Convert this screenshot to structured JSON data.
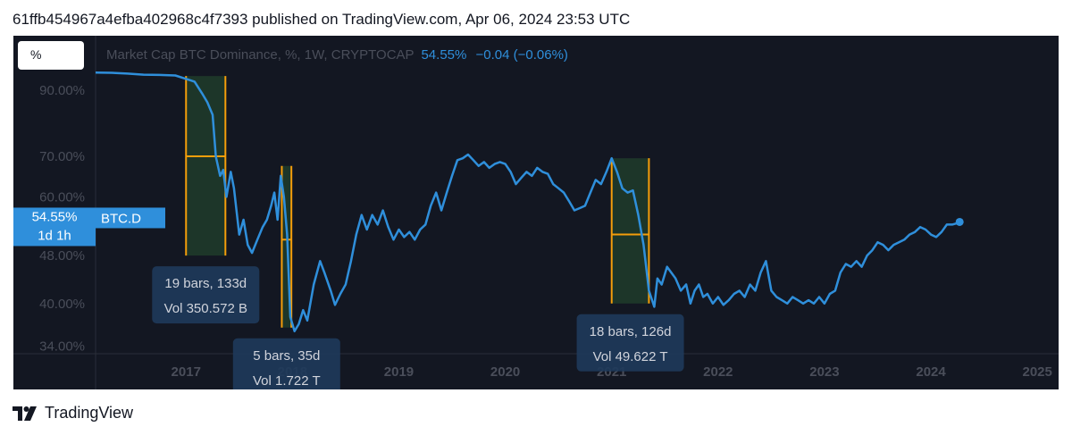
{
  "header": {
    "published_text": "61ffb454967a4efba402968c4f7393 published on TradingView.com, Apr 06, 2024 23:53 UTC"
  },
  "toolbar": {
    "scale_mode_label": "%"
  },
  "legend": {
    "symbol_description": "Market Cap BTC Dominance, %, 1W, CRYPTOCAP",
    "last_value": "54.55%",
    "change": "−0.04 (−0.06%)"
  },
  "price_tag": {
    "value": "54.55%",
    "timeframe": "1d 1h",
    "symbol": "BTC.D"
  },
  "footer": {
    "brand": "TradingView"
  },
  "colors": {
    "background": "#131722",
    "series": "#2f8fdb",
    "range_fill": "#1f3a2a",
    "range_border": "#f59e0b",
    "axis_text": "#4a4e5a",
    "tooltip_bg": "#1e3a5a"
  },
  "chart_data": {
    "type": "line",
    "title": "Market Cap BTC Dominance, %, 1W, CRYPTOCAP",
    "y_scale": "log",
    "ylim": [
      33.5,
      98
    ],
    "xlim": [
      2016.15,
      2025.2
    ],
    "y_ticks": [
      {
        "value": 90,
        "label": "90.00%"
      },
      {
        "value": 70,
        "label": "70.00%"
      },
      {
        "value": 60,
        "label": "60.00%"
      },
      {
        "value": 48,
        "label": "48.00%"
      },
      {
        "value": 40,
        "label": "40.00%"
      },
      {
        "value": 34,
        "label": "34.00%"
      }
    ],
    "x_ticks": [
      {
        "value": 2017.0,
        "label": "2017"
      },
      {
        "value": 2018.0,
        "label": "2018"
      },
      {
        "value": 2019.0,
        "label": "2019"
      },
      {
        "value": 2020.0,
        "label": "2020"
      },
      {
        "value": 2021.0,
        "label": "2021"
      },
      {
        "value": 2022.0,
        "label": "2022"
      },
      {
        "value": 2023.0,
        "label": "2023"
      },
      {
        "value": 2024.0,
        "label": "2024"
      },
      {
        "value": 2025.0,
        "label": "2025"
      }
    ],
    "series": [
      {
        "points": [
          [
            2016.15,
            96.3
          ],
          [
            2016.3,
            96.2
          ],
          [
            2016.45,
            95.9
          ],
          [
            2016.6,
            95.5
          ],
          [
            2016.75,
            95.4
          ],
          [
            2016.9,
            95.2
          ],
          [
            2017.0,
            94.0
          ],
          [
            2017.08,
            93.0
          ],
          [
            2017.15,
            89.0
          ],
          [
            2017.2,
            86.0
          ],
          [
            2017.25,
            82.0
          ],
          [
            2017.28,
            70.0
          ],
          [
            2017.32,
            65.0
          ],
          [
            2017.35,
            66.5
          ],
          [
            2017.38,
            60.0
          ],
          [
            2017.42,
            66.0
          ],
          [
            2017.45,
            62.0
          ],
          [
            2017.5,
            52.0
          ],
          [
            2017.54,
            55.0
          ],
          [
            2017.58,
            50.0
          ],
          [
            2017.62,
            48.5
          ],
          [
            2017.67,
            51.0
          ],
          [
            2017.72,
            53.5
          ],
          [
            2017.76,
            55.0
          ],
          [
            2017.8,
            58.0
          ],
          [
            2017.83,
            61.0
          ],
          [
            2017.86,
            55.0
          ],
          [
            2017.89,
            65.0
          ],
          [
            2017.92,
            60.0
          ],
          [
            2017.95,
            52.0
          ],
          [
            2017.98,
            38.0
          ],
          [
            2018.02,
            36.0
          ],
          [
            2018.06,
            37.0
          ],
          [
            2018.1,
            39.0
          ],
          [
            2018.14,
            37.5
          ],
          [
            2018.2,
            43.0
          ],
          [
            2018.26,
            47.0
          ],
          [
            2018.3,
            45.0
          ],
          [
            2018.36,
            42.0
          ],
          [
            2018.4,
            39.8
          ],
          [
            2018.45,
            41.5
          ],
          [
            2018.5,
            43.0
          ],
          [
            2018.55,
            47.0
          ],
          [
            2018.6,
            52.0
          ],
          [
            2018.65,
            56.0
          ],
          [
            2018.7,
            53.0
          ],
          [
            2018.75,
            56.0
          ],
          [
            2018.8,
            54.0
          ],
          [
            2018.85,
            57.0
          ],
          [
            2018.9,
            53.5
          ],
          [
            2018.95,
            51.0
          ],
          [
            2019.0,
            53.0
          ],
          [
            2019.05,
            51.5
          ],
          [
            2019.1,
            52.5
          ],
          [
            2019.15,
            51.0
          ],
          [
            2019.2,
            53.0
          ],
          [
            2019.25,
            54.0
          ],
          [
            2019.3,
            58.0
          ],
          [
            2019.35,
            61.0
          ],
          [
            2019.4,
            57.0
          ],
          [
            2019.45,
            61.0
          ],
          [
            2019.5,
            65.0
          ],
          [
            2019.55,
            69.0
          ],
          [
            2019.6,
            69.5
          ],
          [
            2019.65,
            70.5
          ],
          [
            2019.7,
            69.0
          ],
          [
            2019.75,
            67.5
          ],
          [
            2019.8,
            68.5
          ],
          [
            2019.85,
            67.0
          ],
          [
            2019.9,
            68.0
          ],
          [
            2019.95,
            68.5
          ],
          [
            2020.0,
            68.0
          ],
          [
            2020.05,
            66.0
          ],
          [
            2020.1,
            63.0
          ],
          [
            2020.15,
            64.5
          ],
          [
            2020.2,
            66.0
          ],
          [
            2020.25,
            65.0
          ],
          [
            2020.3,
            67.0
          ],
          [
            2020.35,
            66.0
          ],
          [
            2020.4,
            65.5
          ],
          [
            2020.45,
            63.0
          ],
          [
            2020.5,
            62.0
          ],
          [
            2020.55,
            61.0
          ],
          [
            2020.6,
            59.0
          ],
          [
            2020.65,
            57.0
          ],
          [
            2020.7,
            57.5
          ],
          [
            2020.75,
            58.0
          ],
          [
            2020.8,
            61.0
          ],
          [
            2020.85,
            64.0
          ],
          [
            2020.9,
            63.0
          ],
          [
            2020.95,
            66.0
          ],
          [
            2021.0,
            69.5
          ],
          [
            2021.05,
            66.0
          ],
          [
            2021.1,
            62.0
          ],
          [
            2021.15,
            61.0
          ],
          [
            2021.2,
            61.5
          ],
          [
            2021.25,
            56.0
          ],
          [
            2021.3,
            50.0
          ],
          [
            2021.35,
            42.0
          ],
          [
            2021.4,
            39.5
          ],
          [
            2021.43,
            44.0
          ],
          [
            2021.47,
            43.0
          ],
          [
            2021.52,
            46.0
          ],
          [
            2021.56,
            45.0
          ],
          [
            2021.6,
            44.0
          ],
          [
            2021.65,
            42.0
          ],
          [
            2021.7,
            43.0
          ],
          [
            2021.74,
            40.0
          ],
          [
            2021.78,
            42.0
          ],
          [
            2021.82,
            43.0
          ],
          [
            2021.86,
            41.0
          ],
          [
            2021.9,
            41.5
          ],
          [
            2021.95,
            40.0
          ],
          [
            2022.0,
            41.0
          ],
          [
            2022.05,
            39.8
          ],
          [
            2022.1,
            40.5
          ],
          [
            2022.15,
            41.5
          ],
          [
            2022.2,
            42.0
          ],
          [
            2022.25,
            41.0
          ],
          [
            2022.3,
            43.0
          ],
          [
            2022.35,
            42.0
          ],
          [
            2022.4,
            45.0
          ],
          [
            2022.45,
            47.0
          ],
          [
            2022.5,
            42.0
          ],
          [
            2022.55,
            41.0
          ],
          [
            2022.6,
            40.5
          ],
          [
            2022.65,
            40.0
          ],
          [
            2022.7,
            41.0
          ],
          [
            2022.75,
            40.5
          ],
          [
            2022.8,
            40.0
          ],
          [
            2022.85,
            40.5
          ],
          [
            2022.9,
            40.0
          ],
          [
            2022.95,
            41.0
          ],
          [
            2023.0,
            40.0
          ],
          [
            2023.05,
            41.5
          ],
          [
            2023.1,
            42.0
          ],
          [
            2023.15,
            45.0
          ],
          [
            2023.2,
            46.5
          ],
          [
            2023.25,
            46.0
          ],
          [
            2023.3,
            47.0
          ],
          [
            2023.35,
            46.0
          ],
          [
            2023.4,
            48.0
          ],
          [
            2023.45,
            49.0
          ],
          [
            2023.5,
            50.5
          ],
          [
            2023.55,
            50.0
          ],
          [
            2023.6,
            49.0
          ],
          [
            2023.65,
            50.0
          ],
          [
            2023.7,
            50.5
          ],
          [
            2023.75,
            51.0
          ],
          [
            2023.8,
            52.0
          ],
          [
            2023.85,
            52.5
          ],
          [
            2023.9,
            53.5
          ],
          [
            2023.95,
            53.0
          ],
          [
            2024.0,
            52.0
          ],
          [
            2024.05,
            51.5
          ],
          [
            2024.1,
            52.5
          ],
          [
            2024.15,
            54.0
          ],
          [
            2024.2,
            54.0
          ],
          [
            2024.25,
            54.3
          ],
          [
            2024.27,
            54.55
          ]
        ]
      }
    ],
    "ranges": [
      {
        "x0": 2017.0,
        "x1": 2017.37,
        "y0": 48.0,
        "y1": 95.0,
        "mid": 70.0,
        "bars_label": "19 bars, 133d",
        "vol_label": "Vol 350.572 B"
      },
      {
        "x0": 2017.9,
        "x1": 2017.99,
        "y0": 36.5,
        "y1": 67.5,
        "mid": 51.0,
        "bars_label": "5 bars, 35d",
        "vol_label": "Vol 1.722 T"
      },
      {
        "x0": 2021.0,
        "x1": 2021.35,
        "y0": 40.0,
        "y1": 69.5,
        "mid": 52.0,
        "bars_label": "18 bars, 126d",
        "vol_label": "Vol 49.622 T"
      }
    ],
    "last": {
      "x": 2024.27,
      "y": 54.55
    }
  }
}
